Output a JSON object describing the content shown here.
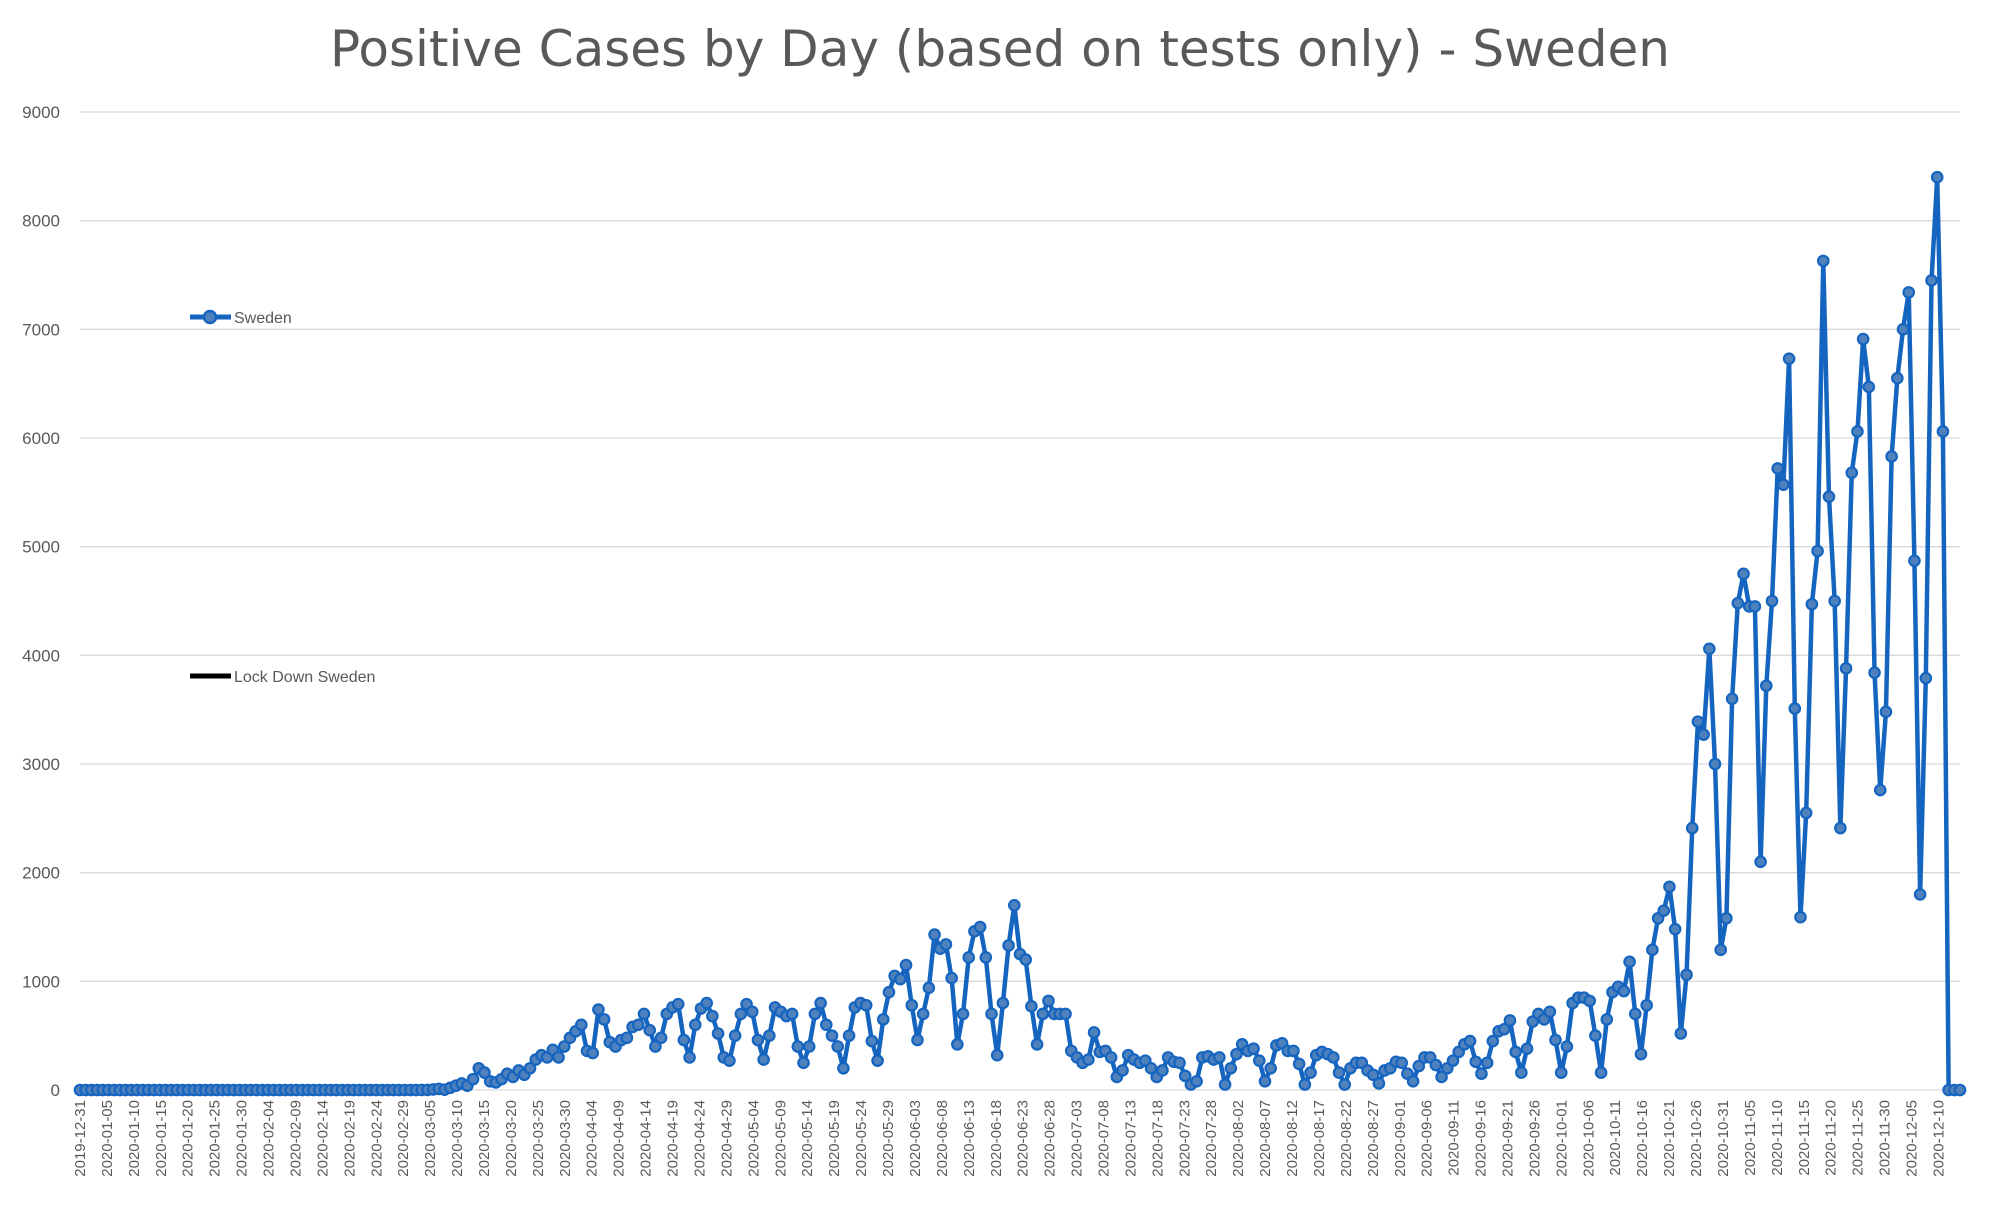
{
  "chart_data": {
    "type": "line",
    "title": "Positive Cases by Day (based on tests only) - Sweden",
    "xlabel": "",
    "ylabel": "",
    "ylim": [
      0,
      9000
    ],
    "yticks": [
      0,
      1000,
      2000,
      3000,
      4000,
      5000,
      6000,
      7000,
      8000,
      9000
    ],
    "grid": true,
    "legend_position": "left",
    "x_start": "2019-12-31",
    "x_end": "2020-12-14",
    "x_tick_labels": [
      "2019-12-31",
      "2020-01-05",
      "2020-01-10",
      "2020-01-15",
      "2020-01-20",
      "2020-01-25",
      "2020-01-30",
      "2020-02-04",
      "2020-02-09",
      "2020-02-14",
      "2020-02-19",
      "2020-02-24",
      "2020-02-29",
      "2020-03-05",
      "2020-03-10",
      "2020-03-15",
      "2020-03-20",
      "2020-03-25",
      "2020-03-30",
      "2020-04-04",
      "2020-04-09",
      "2020-04-14",
      "2020-04-19",
      "2020-04-24",
      "2020-04-29",
      "2020-05-04",
      "2020-05-09",
      "2020-05-14",
      "2020-05-19",
      "2020-05-24",
      "2020-05-29",
      "2020-06-03",
      "2020-06-08",
      "2020-06-13",
      "2020-06-18",
      "2020-06-23",
      "2020-06-28",
      "2020-07-03",
      "2020-07-08",
      "2020-07-13",
      "2020-07-18",
      "2020-07-23",
      "2020-07-28",
      "2020-08-02",
      "2020-08-07",
      "2020-08-12",
      "2020-08-17",
      "2020-08-22",
      "2020-08-27",
      "2020-09-01",
      "2020-09-06",
      "2020-09-11",
      "2020-09-16",
      "2020-09-21",
      "2020-09-26",
      "2020-10-01",
      "2020-10-06",
      "2020-10-11",
      "2020-10-16",
      "2020-10-21",
      "2020-10-26",
      "2020-10-31",
      "2020-11-05",
      "2020-11-10",
      "2020-11-15",
      "2020-11-20",
      "2020-11-25",
      "2020-11-30",
      "2020-12-05",
      "2020-12-10"
    ],
    "series": [
      {
        "name": "Sweden",
        "color": "#1565c0",
        "marker_color": "#4f81bd",
        "values": [
          0,
          0,
          0,
          0,
          0,
          0,
          0,
          0,
          0,
          0,
          0,
          0,
          0,
          0,
          0,
          0,
          0,
          0,
          0,
          0,
          0,
          0,
          0,
          0,
          0,
          0,
          0,
          0,
          0,
          0,
          0,
          0,
          0,
          0,
          0,
          0,
          0,
          0,
          0,
          0,
          0,
          0,
          0,
          0,
          0,
          0,
          0,
          0,
          0,
          0,
          0,
          0,
          0,
          0,
          0,
          0,
          0,
          0,
          0,
          0,
          1,
          1,
          5,
          10,
          3,
          20,
          40,
          60,
          40,
          100,
          200,
          160,
          80,
          70,
          100,
          150,
          120,
          180,
          140,
          200,
          280,
          320,
          300,
          370,
          300,
          400,
          480,
          540,
          600,
          360,
          340,
          740,
          650,
          440,
          400,
          460,
          480,
          580,
          600,
          700,
          550,
          400,
          480,
          700,
          760,
          790,
          460,
          300,
          600,
          750,
          800,
          680,
          520,
          300,
          270,
          500,
          700,
          790,
          720,
          460,
          280,
          500,
          760,
          720,
          680,
          700,
          400,
          250,
          400,
          700,
          800,
          600,
          500,
          400,
          200,
          500,
          760,
          800,
          780,
          450,
          270,
          650,
          900,
          1050,
          1020,
          1150,
          780,
          460,
          700,
          940,
          1430,
          1300,
          1340,
          1030,
          420,
          700,
          1220,
          1460,
          1500,
          1220,
          700,
          320,
          800,
          1330,
          1700,
          1250,
          1200,
          770,
          420,
          700,
          820,
          700,
          700,
          700,
          360,
          300,
          250,
          280,
          530,
          350,
          360,
          300,
          120,
          180,
          320,
          280,
          250,
          270,
          200,
          120,
          180,
          300,
          260,
          250,
          130,
          50,
          80,
          300,
          310,
          280,
          300,
          50,
          200,
          330,
          420,
          360,
          380,
          270,
          80,
          200,
          410,
          430,
          360,
          360,
          240,
          50,
          160,
          320,
          350,
          330,
          300,
          160,
          50,
          200,
          250,
          250,
          180,
          140,
          60,
          180,
          200,
          260,
          250,
          150,
          80,
          220,
          300,
          300,
          230,
          120,
          200,
          270,
          350,
          420,
          450,
          260,
          150,
          250,
          450,
          540,
          560,
          640,
          350,
          160,
          380,
          630,
          700,
          650,
          720,
          460,
          160,
          400,
          800,
          850,
          850,
          820,
          500,
          160,
          650,
          900,
          950,
          910,
          1180,
          700,
          330,
          780,
          1290,
          1580,
          1650,
          1870,
          1480,
          520,
          1060,
          2410,
          3390,
          3270,
          4060,
          3000,
          1290,
          1580,
          3600,
          4480,
          4750,
          4450,
          4450,
          2100,
          3720,
          4500,
          5720,
          5570,
          6730,
          3510,
          1590,
          2550,
          4470,
          4960,
          7630,
          5460,
          4500,
          2410,
          3880,
          5680,
          6060,
          6910,
          6470,
          3840,
          2760,
          3480,
          5830,
          6550,
          7000,
          7340,
          4870,
          1800,
          3790,
          7450,
          8400,
          6060,
          0,
          0,
          0
        ]
      },
      {
        "name": "Lock Down Sweden",
        "color": "#000000",
        "values": []
      }
    ]
  }
}
